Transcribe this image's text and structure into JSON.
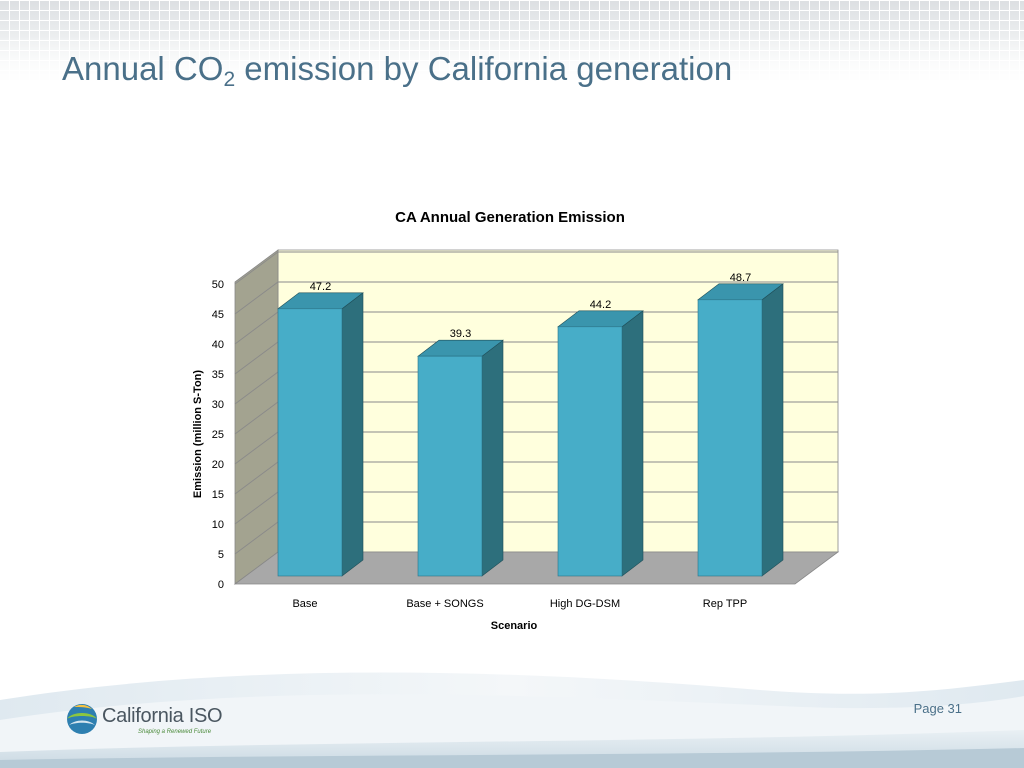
{
  "slide": {
    "title_pre": "Annual CO",
    "title_sub": "2",
    "title_post": " emission by California generation",
    "page_label": "Page 31"
  },
  "logo": {
    "name": "California ISO",
    "tagline": "Shaping a Renewed Future"
  },
  "colors": {
    "bar_front": "#47adc8",
    "bar_side": "#2d6f7c",
    "bar_top": "#3a95ad",
    "back_wall": "#ffffdd",
    "side_wall": "#a3a390",
    "floor": "#a8a8a8",
    "title": "#4a7089"
  },
  "chart_data": {
    "type": "bar",
    "title": "CA Annual Generation Emission",
    "xlabel": "Scenario",
    "ylabel": "Emission (million S-Ton)",
    "categories": [
      "Base",
      "Base + SONGS",
      "High DG-DSM",
      "Rep TPP"
    ],
    "values": [
      47.2,
      39.3,
      44.2,
      48.7
    ],
    "data_labels": [
      "47.2",
      "39.3",
      "44.2",
      "48.7"
    ],
    "ylim": [
      0,
      50
    ],
    "yticks": [
      "0",
      "5",
      "10",
      "15",
      "20",
      "25",
      "30",
      "35",
      "40",
      "45",
      "50"
    ],
    "grid": true,
    "legend": "none",
    "three_d": true
  }
}
